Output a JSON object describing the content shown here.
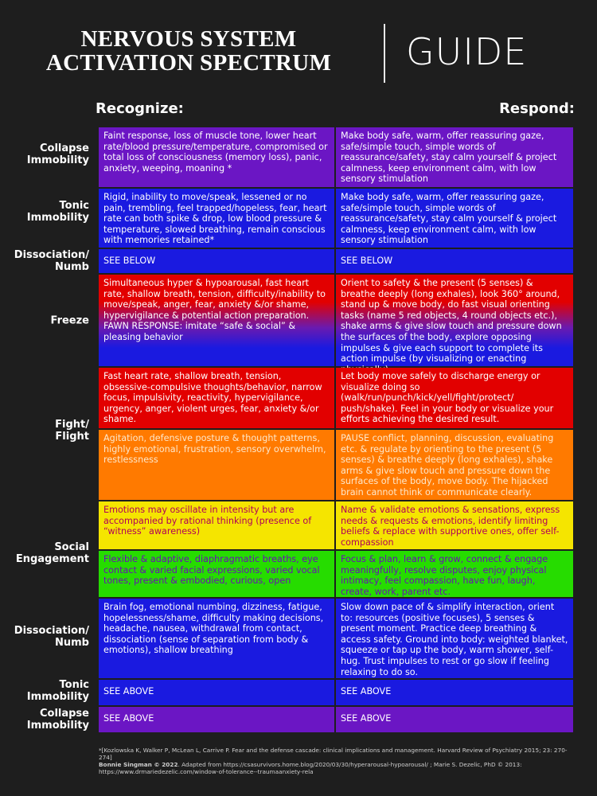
{
  "header": {
    "title_line1": "NERVOUS SYSTEM",
    "title_line2": "ACTIVATION SPECTRUM",
    "guide": "GUIDE"
  },
  "columns": {
    "recognize": "Recognize:",
    "respond": "Respond:"
  },
  "rows": [
    {
      "label": "Collapse\nImmobility",
      "cells": [
        {
          "recognize": "Faint response, loss of muscle tone, lower heart rate/blood pressure/temperature, compromised or total loss of consciousness (memory loss), panic, anxiety, weeping, moaning *",
          "respond": "Make body safe, warm, offer reassuring gaze, safe/simple touch, simple words of reassurance/safety, stay calm yourself & project calmness, keep environment calm, with low sensory stimulation"
        }
      ]
    },
    {
      "label": "Tonic\nImmobility",
      "cells": [
        {
          "recognize": "Rigid, inability to move/speak, lessened or no pain, trembling, feel trapped/hopeless, fear, heart rate can both spike & drop, low blood pressure & temperature, slowed breathing, remain conscious with memories retained*",
          "respond": "Make body safe, warm, offer reassuring gaze, safe/simple touch, simple words of reassurance/safety, stay calm yourself & project calmness, keep environment calm, with low sensory stimulation"
        }
      ]
    },
    {
      "label": "Dissociation/\nNumb",
      "cells": [
        {
          "recognize": "SEE BELOW",
          "respond": "SEE BELOW"
        }
      ]
    },
    {
      "label": "Freeze",
      "cells": [
        {
          "recognize": "Simultaneous hyper & hypoarousal, fast heart rate, shallow breath, tension, difficulty/inability to move/speak, anger, fear, anxiety &/or shame, hypervigilance & potential action preparation. FAWN RESPONSE: imitate “safe & social” & pleasing behavior",
          "respond": "Orient to safety & the present (5 senses) & breathe deeply (long exhales), look 360° around, stand up & move body, do fast visual orienting tasks (name 5 red objects, 4 round objects etc.), shake arms & give slow touch and pressure down the surfaces of the body, explore opposing impulses & give each support to complete its action impulse (by visualizing or enacting physically)"
        }
      ]
    },
    {
      "label": "Fight/\nFlight",
      "cells": [
        {
          "recognize": "Fast heart rate, shallow breath, tension, obsessive-compulsive thoughts/behavior, narrow focus, impulsivity, reactivity, hypervigilance, urgency, anger, violent urges, fear, anxiety &/or shame.",
          "respond": "Let body move safely to discharge energy or visualize doing so (walk/run/punch/kick/yell/fight/protect/ push/shake). Feel in your body or visualize your efforts achieving the desired result."
        },
        {
          "recognize": "Agitation, defensive posture & thought patterns, highly emotional, frustration, sensory overwhelm, restlessness",
          "respond": "PAUSE conflict, planning, discussion, evaluating etc. & regulate by orienting to the present (5 senses) & breathe deeply (long exhales), shake arms & give slow touch and pressure down the surfaces of the body, move body. The hijacked brain cannot think or communicate clearly."
        }
      ]
    },
    {
      "label": "Social\nEngagement",
      "cells": [
        {
          "recognize": "Emotions may oscillate in intensity but are accompanied by rational thinking (presence of “witness” awareness)",
          "respond": "Name & validate emotions & sensations, express needs & requests & emotions, identify limiting beliefs & replace with supportive ones, offer self-compassion"
        },
        {
          "recognize": "Flexible & adaptive, diaphragmatic breaths, eye contact & varied facial expressions, varied vocal tones, present & embodied, curious, open",
          "respond": "Focus & plan, learn & grow, connect & engage meaningfully, resolve disputes, enjoy physical intimacy, feel compassion, have fun, laugh, create, work, parent etc."
        }
      ]
    },
    {
      "label": "Dissociation/\nNumb",
      "cells": [
        {
          "recognize": "Brain fog, emotional numbing, dizziness, fatigue, hopelessness/shame, difficulty making decisions, headache, nausea, withdrawal from contact, dissociation (sense of separation from body & emotions), shallow breathing",
          "respond": "Slow down pace of & simplify interaction, orient to: resources (positive focuses), 5 senses & present moment. Practice deep breathing & access safety. Ground into body: weighted blanket, squeeze or tap up the body, warm shower, self-hug. Trust impulses to rest or go slow if feeling relaxing to do so."
        }
      ]
    },
    {
      "label": "Tonic\nImmobility",
      "cells": [
        {
          "recognize": "SEE ABOVE",
          "respond": "SEE ABOVE"
        }
      ]
    },
    {
      "label": "Collapse\nImmobility",
      "cells": [
        {
          "recognize": "SEE ABOVE",
          "respond": "SEE ABOVE"
        }
      ]
    }
  ],
  "footer": {
    "reference": "*[Kozlowska K, Walker P, McLean L, Carrive P. Fear and the defense cascade: clinical implications and management. Harvard Review of Psychiatry 2015; 23: 270-274]",
    "credit_name": "Bonnie Singman © 2022",
    "credit_text": ". Adapted from https://csasurvivors.home.blog/2020/03/30/hyperarousal-hypoarousal/ ;  Marie S. Dezelic, PhD ©  2013: https://www.drmariedezelic.com/window-of-tolerance--traumaanxiety-rela"
  }
}
